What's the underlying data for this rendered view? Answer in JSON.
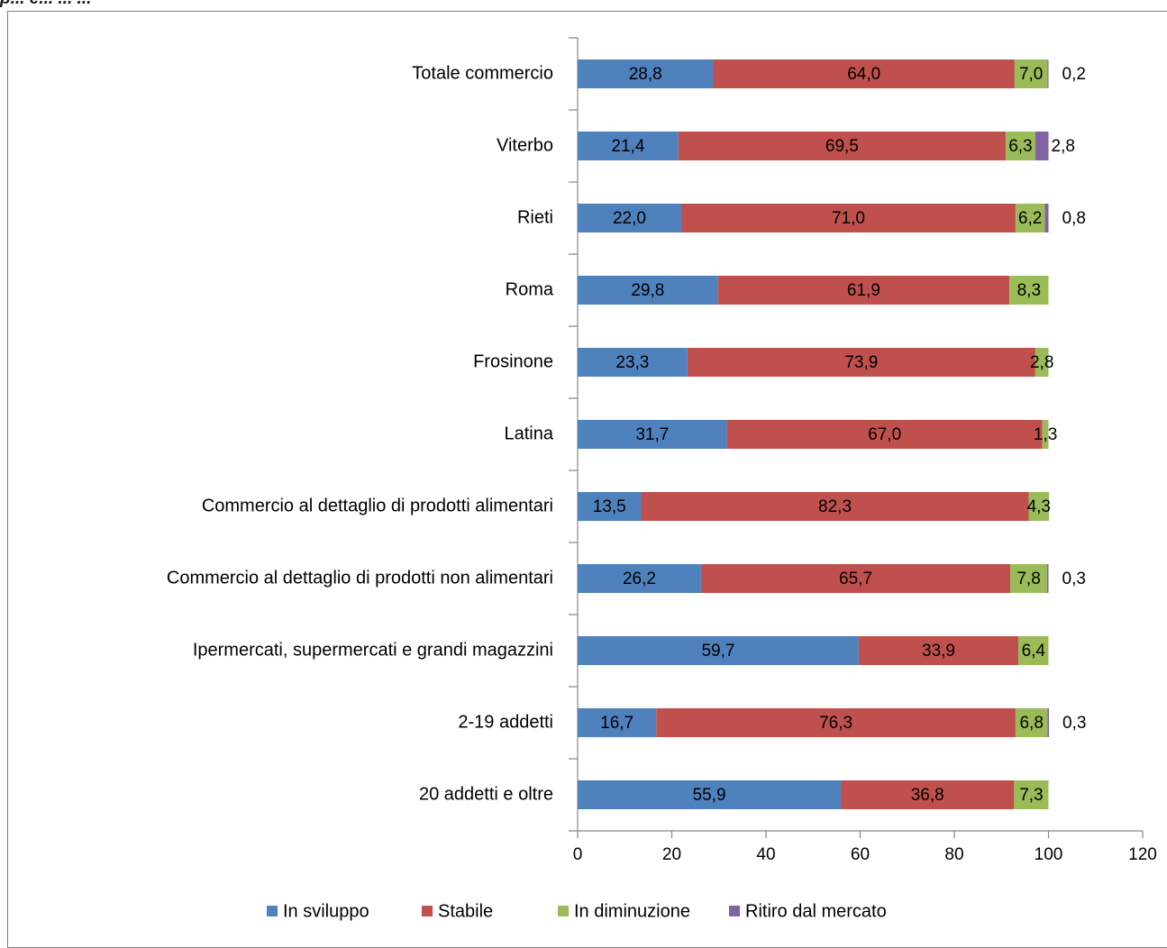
{
  "caption": "p... e... ... ...",
  "chart_data": {
    "type": "bar",
    "orientation": "horizontal",
    "stacked": true,
    "categories": [
      "Totale commercio",
      "Viterbo",
      "Rieti",
      "Roma",
      "Frosinone",
      "Latina",
      "Commercio al dettaglio di prodotti alimentari",
      "Commercio al dettaglio di prodotti non alimentari",
      "Ipermercati, supermercati e grandi magazzini",
      "2-19 addetti",
      "20 addetti e oltre"
    ],
    "series": [
      {
        "name": "In sviluppo",
        "color": "#4f81bd",
        "values": [
          28.8,
          21.4,
          22.0,
          29.8,
          23.3,
          31.7,
          13.5,
          26.2,
          59.7,
          16.7,
          55.9
        ],
        "labels": [
          "28,8",
          "21,4",
          "22,0",
          "29,8",
          "23,3",
          "31,7",
          "13,5",
          "26,2",
          "59,7",
          "16,7",
          "55,9"
        ]
      },
      {
        "name": "Stabile",
        "color": "#c0504d",
        "values": [
          64.0,
          69.5,
          71.0,
          61.9,
          73.9,
          67.0,
          82.3,
          65.7,
          33.9,
          76.3,
          36.8
        ],
        "labels": [
          "64,0",
          "69,5",
          "71,0",
          "61,9",
          "73,9",
          "67,0",
          "82,3",
          "65,7",
          "33,9",
          "76,3",
          "36,8"
        ]
      },
      {
        "name": "In diminuzione",
        "color": "#9bbb59",
        "values": [
          7.0,
          6.3,
          6.2,
          8.3,
          2.8,
          1.3,
          4.3,
          7.8,
          6.4,
          6.8,
          7.3
        ],
        "labels": [
          "7,0",
          "6,3",
          "6,2",
          "8,3",
          "2,8",
          "1,3",
          "4,3",
          "7,8",
          "6,4",
          "6,8",
          "7,3"
        ]
      },
      {
        "name": "Ritiro dal mercato",
        "color": "#8064a2",
        "values": [
          0.2,
          2.8,
          0.8,
          0,
          0,
          0,
          0,
          0.3,
          0,
          0.3,
          0
        ],
        "labels": [
          "0,2",
          "2,8",
          "0,8",
          "",
          "",
          "",
          "",
          "0,3",
          "",
          "0,3",
          ""
        ]
      }
    ],
    "xlim": [
      0,
      120
    ],
    "xticks": [
      0,
      20,
      40,
      60,
      80,
      100,
      120
    ],
    "legend_position": "bottom",
    "grid": false,
    "title": "",
    "xlabel": "",
    "ylabel": ""
  }
}
